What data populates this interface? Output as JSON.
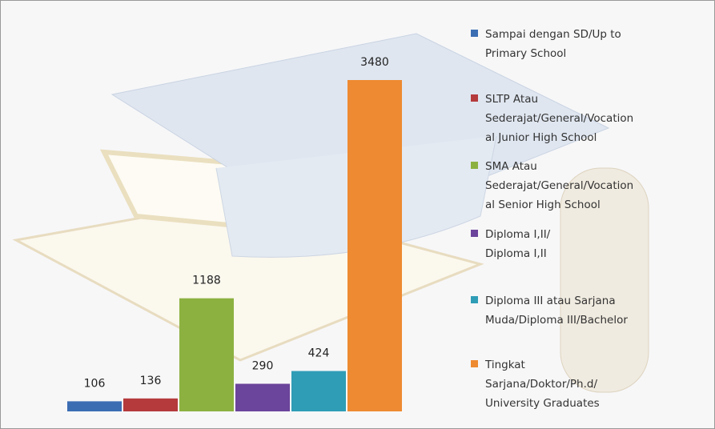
{
  "chart_data": {
    "type": "bar",
    "categories": [
      [
        "Sampai dengan SD/Up to",
        "Primary School"
      ],
      [
        "SLTP Atau",
        "Sederajat/General/Vocation",
        "al Junior High School"
      ],
      [
        "SMA Atau",
        "Sederajat/General/Vocation",
        "al Senior High School"
      ],
      [
        "Diploma I,II/",
        "Diploma I,II"
      ],
      [
        "Diploma III atau Sarjana",
        "Muda/Diploma III/Bachelor"
      ],
      [
        "Tingkat",
        "Sarjana/Doktor/Ph.d/",
        "University Graduates"
      ]
    ],
    "values": [
      106,
      136,
      1188,
      290,
      424,
      3480
    ],
    "colors": [
      "#3b6db3",
      "#b53a3c",
      "#8cb141",
      "#6b449b",
      "#2f9db6",
      "#ee8a31"
    ],
    "legend": "right"
  }
}
